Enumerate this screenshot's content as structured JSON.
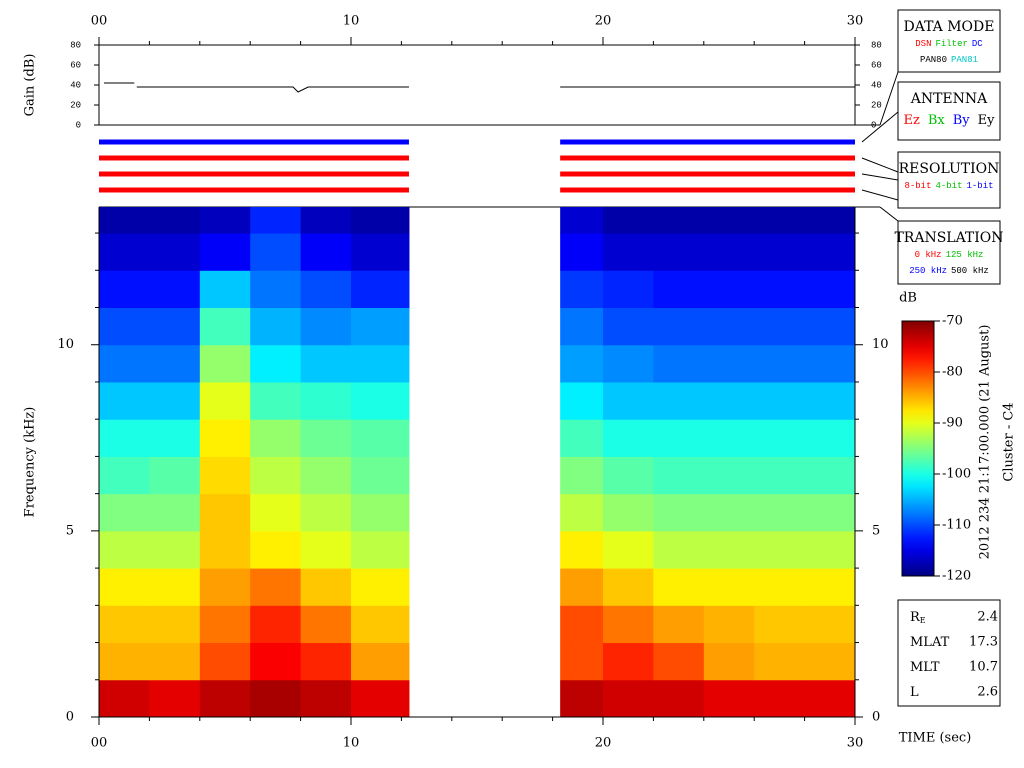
{
  "chart_data": {
    "type": "spectrogram",
    "xlim": [
      0,
      30
    ],
    "xticks": [
      {
        "value": 0,
        "label": "00"
      },
      10,
      20,
      30
    ],
    "xminorticks": [
      2,
      4,
      6,
      8,
      12,
      14,
      16,
      18,
      22,
      24,
      26,
      28
    ],
    "xlabel": "TIME (sec)",
    "gain": {
      "ylabel": "Gain (dB)",
      "ylim": [
        0,
        80
      ],
      "yticks": [
        0,
        20,
        40,
        60,
        80
      ],
      "color": "#000000",
      "x": [
        0.2,
        1.4,
        null,
        1.5,
        7.7,
        7.9,
        8.3,
        12.3,
        null,
        18.3,
        30
      ],
      "values": [
        42,
        42,
        null,
        38,
        38,
        33,
        38,
        38,
        null,
        38,
        38
      ]
    },
    "status_bars": [
      {
        "color": "#0000ff",
        "segments": [
          [
            0,
            12.3
          ],
          [
            18.3,
            30
          ]
        ]
      },
      {
        "color": "#ff0000",
        "segments": [
          [
            0,
            12.3
          ],
          [
            18.3,
            30
          ]
        ]
      },
      {
        "color": "#ff0000",
        "segments": [
          [
            0,
            12.3
          ],
          [
            18.3,
            30
          ]
        ]
      },
      {
        "color": "#ff0000",
        "segments": [
          [
            0,
            12.3
          ],
          [
            18.3,
            30
          ]
        ]
      }
    ],
    "spectrogram": {
      "ylabel": "Frequency (kHz)",
      "ylim": [
        0,
        13.7
      ],
      "yticks": [
        0,
        5,
        10
      ],
      "yminorticks": [
        1,
        2,
        3,
        4,
        6,
        7,
        8,
        9,
        11,
        12,
        13
      ],
      "xbins": [
        0,
        2,
        4,
        6,
        8,
        10,
        12.3,
        18.3,
        20,
        22,
        24,
        26,
        28,
        30
      ],
      "ybins": [
        0,
        1,
        2,
        3,
        4,
        5,
        6,
        7,
        8,
        9,
        10,
        11,
        12,
        13,
        13.7
      ],
      "values": [
        [
          -74,
          -75,
          -73,
          -72,
          -73,
          -75,
          null,
          -73,
          -74,
          -74,
          -75,
          -75,
          -75
        ],
        [
          -85,
          -85,
          -80,
          -76,
          -78,
          -84,
          null,
          -80,
          -78,
          -80,
          -84,
          -85,
          -85
        ],
        [
          -86,
          -86,
          -82,
          -78,
          -82,
          -86,
          null,
          -80,
          -82,
          -84,
          -85,
          -86,
          -86
        ],
        [
          -88,
          -88,
          -84,
          -82,
          -86,
          -88,
          null,
          -84,
          -86,
          -88,
          -88,
          -88,
          -88
        ],
        [
          -92,
          -92,
          -86,
          -88,
          -90,
          -92,
          null,
          -88,
          -90,
          -92,
          -92,
          -92,
          -92
        ],
        [
          -95,
          -95,
          -86,
          -90,
          -92,
          -94,
          null,
          -92,
          -94,
          -95,
          -95,
          -95,
          -95
        ],
        [
          -98,
          -97,
          -87,
          -92,
          -94,
          -96,
          null,
          -95,
          -97,
          -98,
          -98,
          -98,
          -98
        ],
        [
          -100,
          -100,
          -88,
          -94,
          -96,
          -97,
          null,
          -98,
          -100,
          -100,
          -100,
          -100,
          -100
        ],
        [
          -104,
          -104,
          -90,
          -98,
          -99,
          -100,
          null,
          -102,
          -104,
          -104,
          -104,
          -104,
          -104
        ],
        [
          -108,
          -108,
          -94,
          -102,
          -104,
          -104,
          null,
          -106,
          -107,
          -108,
          -108,
          -108,
          -108
        ],
        [
          -110,
          -110,
          -98,
          -105,
          -107,
          -106,
          null,
          -108,
          -110,
          -110,
          -110,
          -110,
          -110
        ],
        [
          -113,
          -113,
          -104,
          -108,
          -110,
          -112,
          null,
          -111,
          -112,
          -113,
          -113,
          -113,
          -113
        ],
        [
          -116,
          -116,
          -114,
          -110,
          -114,
          -116,
          null,
          -114,
          -116,
          -116,
          -116,
          -116,
          -116
        ],
        [
          -118,
          -118,
          -117,
          -112,
          -117,
          -118,
          null,
          -116,
          -118,
          -118,
          -118,
          -118,
          -118
        ]
      ]
    },
    "colorbar": {
      "label": "dB",
      "lim": [
        -120,
        -70
      ],
      "ticks": [
        -70,
        -80,
        -90,
        -100,
        -110,
        -120
      ]
    },
    "panels": [
      {
        "title": "DATA MODE",
        "lines": [
          [
            {
              "text": "DSN",
              "color": "#ff0000"
            },
            {
              "text": "Filter",
              "color": "#00c000"
            },
            {
              "text": "DC",
              "color": "#0000ff"
            }
          ],
          [
            {
              "text": "PAN80",
              "color": "#000000"
            },
            {
              "text": "PAN81",
              "color": "#00c8c8"
            }
          ]
        ]
      },
      {
        "title": "ANTENNA",
        "lines": [
          [
            {
              "text": "Ez",
              "color": "#ff0000"
            },
            {
              "text": "Bx",
              "color": "#00c000"
            },
            {
              "text": "By",
              "color": "#0000ff"
            },
            {
              "text": "Ey",
              "color": "#000000"
            }
          ]
        ]
      },
      {
        "title": "RESOLUTION",
        "lines": [
          [
            {
              "text": "8-bit",
              "color": "#ff0000"
            },
            {
              "text": "4-bit",
              "color": "#00c000"
            },
            {
              "text": "1-bit",
              "color": "#0000ff"
            }
          ]
        ]
      },
      {
        "title": "TRANSLATION",
        "lines": [
          [
            {
              "text": "0 kHz",
              "color": "#ff0000"
            },
            {
              "text": "125 kHz",
              "color": "#00c000"
            }
          ],
          [
            {
              "text": "250 kHz",
              "color": "#0000ff"
            },
            {
              "text": "500 kHz",
              "color": "#000000"
            }
          ]
        ]
      }
    ],
    "info": [
      {
        "label": "R",
        "sub": "E",
        "value": 2.4
      },
      {
        "label": "MLAT",
        "value": 17.3
      },
      {
        "label": "MLT",
        "value": 10.7
      },
      {
        "label": "L",
        "value": 2.6
      }
    ],
    "caption": [
      "2012 234 21:17:00.000 (21 August)",
      "Cluster - C4"
    ]
  }
}
